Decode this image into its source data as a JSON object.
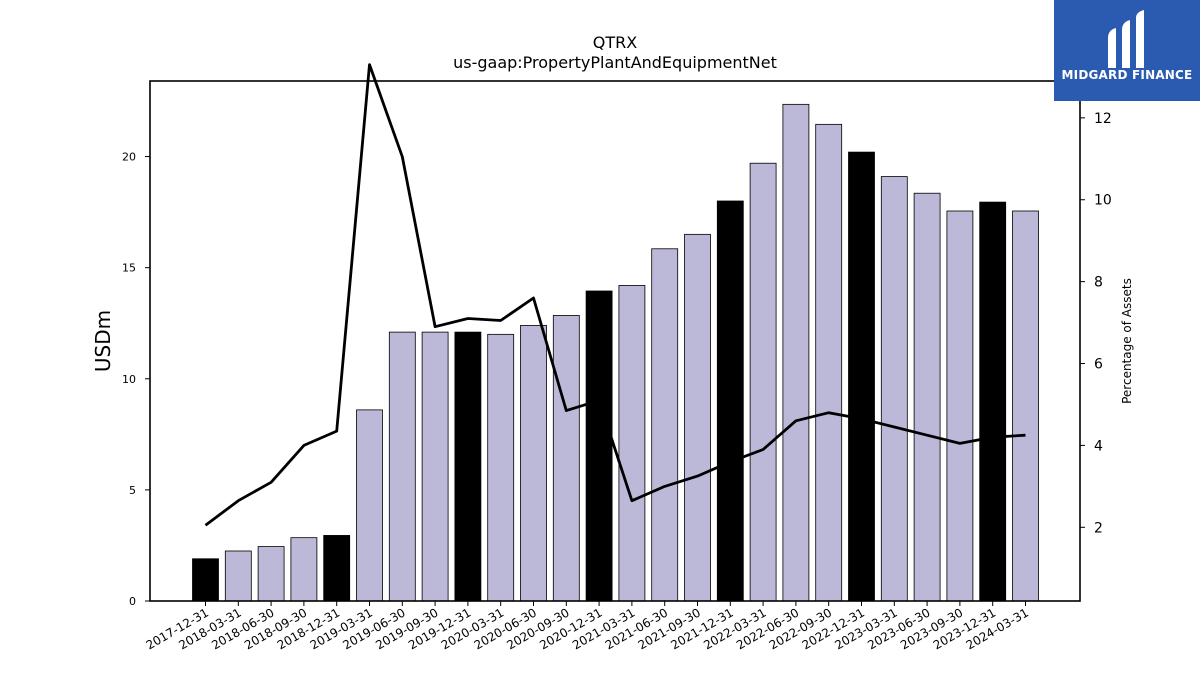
{
  "chart_data": {
    "type": "bar",
    "title": "QTRX",
    "subtitle": "us-gaap:PropertyPlantAndEquipmentNet",
    "ylabel": "USDm",
    "y2label": "Percentage of Assets",
    "categories": [
      "2017-12-31",
      "2018-03-31",
      "2018-06-30",
      "2018-09-30",
      "2018-12-31",
      "2019-03-31",
      "2019-06-30",
      "2019-09-30",
      "2019-12-31",
      "2020-03-31",
      "2020-06-30",
      "2020-09-30",
      "2020-12-31",
      "2021-03-31",
      "2021-06-30",
      "2021-09-30",
      "2021-12-31",
      "2022-03-31",
      "2022-06-30",
      "2022-09-30",
      "2022-12-31",
      "2023-03-31",
      "2023-06-30",
      "2023-09-30",
      "2023-12-31",
      "2024-03-31"
    ],
    "values": [
      1.9,
      2.25,
      2.45,
      2.85,
      2.95,
      8.6,
      12.1,
      12.1,
      12.1,
      12.0,
      12.4,
      12.85,
      13.95,
      14.2,
      15.85,
      16.5,
      18.0,
      19.7,
      22.35,
      21.45,
      20.2,
      19.1,
      18.35,
      17.55,
      17.95,
      17.55
    ],
    "fiscal_year_end_flags": [
      true,
      false,
      false,
      false,
      true,
      false,
      false,
      false,
      true,
      false,
      false,
      false,
      true,
      false,
      false,
      false,
      true,
      false,
      false,
      false,
      true,
      false,
      false,
      false,
      true,
      false
    ],
    "line_values": [
      2.05,
      2.65,
      3.1,
      4.0,
      4.35,
      13.3,
      11.05,
      6.9,
      7.1,
      7.05,
      7.6,
      4.85,
      5.1,
      2.65,
      3.0,
      3.25,
      3.6,
      3.9,
      4.6,
      4.8,
      4.65,
      4.45,
      4.25,
      4.05,
      4.2,
      4.25
    ],
    "ylim": [
      0,
      23.4
    ],
    "y2lim": [
      0.2,
      12.9
    ],
    "yticks": [
      0,
      5,
      10,
      15,
      20
    ],
    "y2ticks": [
      2,
      4,
      6,
      8,
      10,
      12
    ],
    "colors": {
      "bar": "#bcb8d8",
      "bar_fy": "#000000",
      "line": "#000000"
    },
    "grid": false,
    "legend": "none"
  },
  "logo": {
    "text": "MIDGARD FINANCE"
  }
}
